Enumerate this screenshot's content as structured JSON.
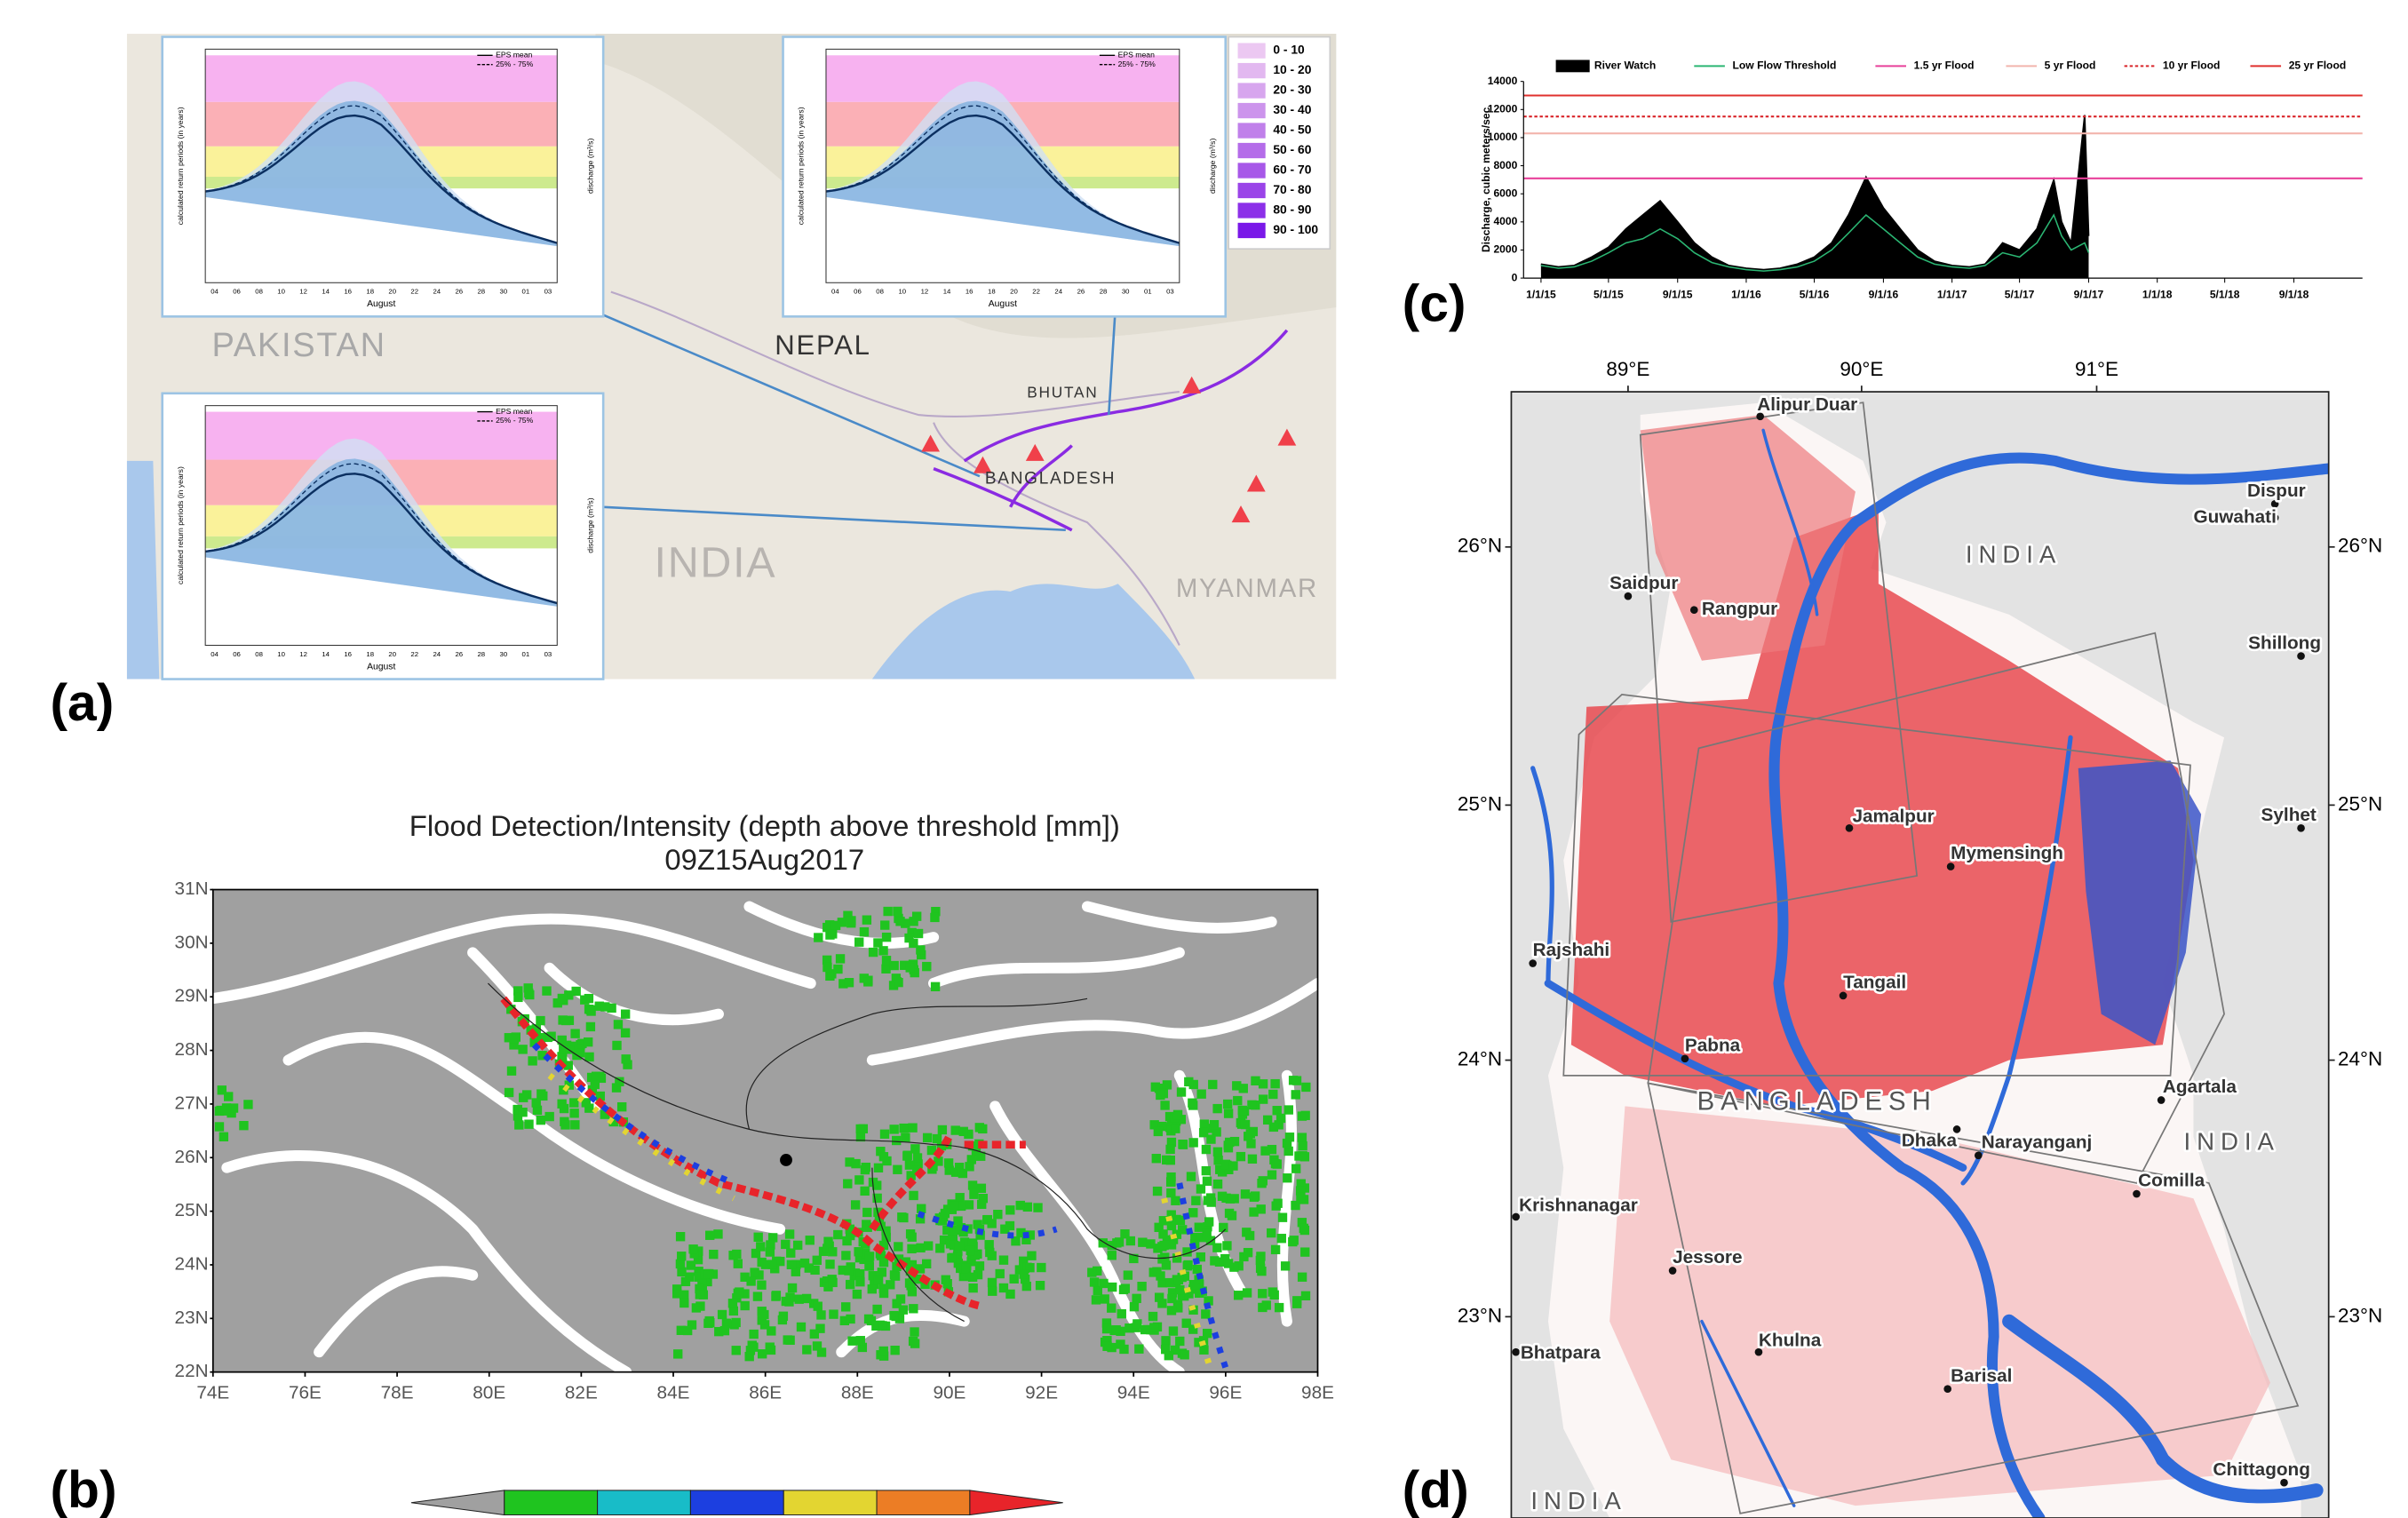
{
  "panel_labels": [
    "(a)",
    "(b)",
    "(c)",
    "(d)"
  ],
  "panel_a": {
    "countries": [
      "PAKISTAN",
      "NEPAL",
      "BHUTAN",
      "BANGLADESH",
      "INDIA",
      "MYANMAR"
    ],
    "inset_legend": [
      "EPS mean",
      "25% - 75%"
    ],
    "inset_xlabel": "August",
    "inset_ylabel": "calculated return periods (in years)",
    "inset_y2label": "discharge (m³/s)",
    "inset_xticks": [
      "04",
      "06",
      "08",
      "10",
      "12",
      "14",
      "16",
      "18",
      "20",
      "22",
      "24",
      "26",
      "28",
      "30",
      "01",
      "03"
    ],
    "probability_legend": [
      {
        "label": "0 - 10",
        "color": "#ecc8f2"
      },
      {
        "label": "10 - 20",
        "color": "#e2b8f0"
      },
      {
        "label": "20 - 30",
        "color": "#d7a6ee"
      },
      {
        "label": "30 - 40",
        "color": "#cc94ec"
      },
      {
        "label": "40 - 50",
        "color": "#c080ea"
      },
      {
        "label": "50 - 60",
        "color": "#b46ce9"
      },
      {
        "label": "60 - 70",
        "color": "#a758e8"
      },
      {
        "label": "70 - 80",
        "color": "#9a44e8"
      },
      {
        "label": "80 - 90",
        "color": "#8c30e8"
      },
      {
        "label": "90 - 100",
        "color": "#7a18e8"
      }
    ]
  },
  "panel_b": {
    "title": "Flood Detection/Intensity (depth above threshold [mm])",
    "subtitle": "09Z15Aug2017",
    "lat_ticks": [
      "31N",
      "30N",
      "29N",
      "28N",
      "27N",
      "26N",
      "25N",
      "24N",
      "23N",
      "22N"
    ],
    "lon_ticks": [
      "74E",
      "76E",
      "78E",
      "80E",
      "82E",
      "84E",
      "86E",
      "88E",
      "90E",
      "92E",
      "94E",
      "96E",
      "98E"
    ],
    "colorbar": [
      "#a0a0a0",
      "#1fc41f",
      "#18bcc8",
      "#1c3fe0",
      "#e3d531",
      "#ec7d25",
      "#e8242a"
    ]
  },
  "chart_data": {
    "type": "area",
    "ylabel": "Discharge, cubic meters/sec",
    "x": [
      "1/1/15",
      "2/1/15",
      "3/1/15",
      "4/1/15",
      "5/1/15",
      "6/1/15",
      "7/1/15",
      "8/1/15",
      "9/1/15",
      "10/1/15",
      "11/1/15",
      "12/1/15",
      "1/1/16",
      "2/1/16",
      "3/1/16",
      "4/1/16",
      "5/1/16",
      "6/1/16",
      "7/1/16",
      "8/1/16",
      "9/1/16",
      "10/1/16",
      "11/1/16",
      "12/1/16",
      "1/1/17",
      "2/1/17",
      "3/1/17",
      "4/1/17",
      "5/1/17",
      "6/1/17",
      "7/1/17",
      "7/15/17",
      "8/1/17",
      "8/25/17",
      "9/1/17"
    ],
    "series": [
      {
        "name": "River Watch",
        "color": "#000000",
        "values": [
          1000,
          800,
          900,
          1500,
          2200,
          3500,
          4500,
          5500,
          4000,
          2500,
          1500,
          900,
          700,
          600,
          700,
          1000,
          1500,
          2500,
          4500,
          7200,
          5000,
          3500,
          2000,
          1200,
          900,
          800,
          1000,
          2500,
          2000,
          3500,
          7000,
          4000,
          2500,
          11600,
          3000
        ]
      },
      {
        "name": "Low Flow Threshold",
        "color": "#2bb673",
        "values": [
          900,
          700,
          800,
          1200,
          1800,
          2500,
          2800,
          3500,
          2800,
          1800,
          1100,
          800,
          600,
          500,
          600,
          800,
          1200,
          2000,
          3200,
          4500,
          3500,
          2500,
          1500,
          1000,
          800,
          700,
          900,
          1800,
          1500,
          2500,
          4500,
          3000,
          2000,
          2500,
          1800
        ]
      }
    ],
    "thresholds": [
      {
        "name": "1.5 yr Flood",
        "color": "#e8419a",
        "value": 7100
      },
      {
        "name": "5 yr Flood",
        "color": "#f2b5ad",
        "value": 10300
      },
      {
        "name": "10 yr Flood",
        "color": "#d9262b",
        "value": 11500,
        "dashed": true
      },
      {
        "name": "25 yr Flood",
        "color": "#e0302e",
        "value": 13000
      }
    ],
    "xlim": [
      "12/1/14",
      "1/1/19"
    ],
    "xticks": [
      "1/1/15",
      "5/1/15",
      "9/1/15",
      "1/1/16",
      "5/1/16",
      "9/1/16",
      "1/1/17",
      "5/1/17",
      "9/1/17",
      "1/1/18",
      "5/1/18",
      "9/1/18"
    ],
    "ylim": [
      0,
      14000
    ],
    "yticks": [
      0,
      2000,
      4000,
      6000,
      8000,
      10000,
      12000,
      14000
    ],
    "legend": "top"
  },
  "panel_d": {
    "lon_ticks": [
      "89°E",
      "90°E",
      "91°E"
    ],
    "lat_ticks": [
      "26°N",
      "25°N",
      "24°N",
      "23°N"
    ],
    "cities": [
      "Alipur Duar",
      "Saidpur",
      "Rangpur",
      "Dispur",
      "Guwahati",
      "Shillong",
      "Sylhet",
      "Jamalpur",
      "Mymensingh",
      "Rajshahi",
      "Tangail",
      "Pabna",
      "Agartala",
      "Dhaka",
      "Narayanganj",
      "Comilla",
      "Krishnanagar",
      "Jessore",
      "Khulna",
      "Barisal",
      "Bhatpara",
      "Chittagong"
    ],
    "countries": [
      "INDIA",
      "BANGLADESH",
      "INDIA",
      "INDIA"
    ]
  }
}
